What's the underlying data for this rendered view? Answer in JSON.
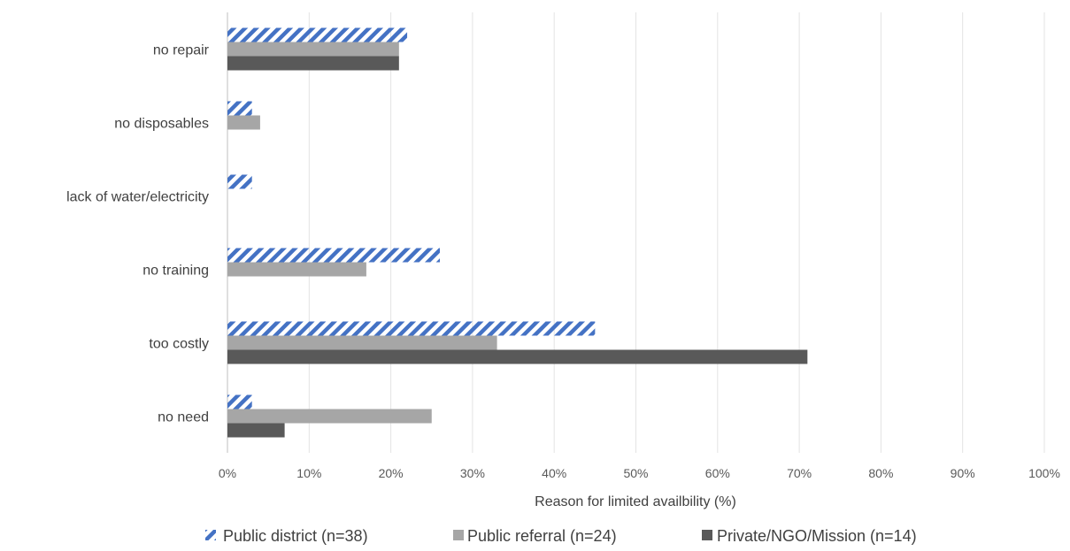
{
  "chart_data": {
    "type": "bar",
    "orientation": "horizontal",
    "categories": [
      "no repair",
      "no disposables",
      "lack of water/electricity",
      "no training",
      "too costly",
      "no need"
    ],
    "series": [
      {
        "name": "Public district (n=38)",
        "values": [
          22,
          3,
          3,
          26,
          45,
          3
        ],
        "color": "#4472C4",
        "pattern": "diagonal-hatch"
      },
      {
        "name": "Public referral (n=24)",
        "values": [
          21,
          4,
          0,
          17,
          33,
          25
        ],
        "color": "#A6A6A6",
        "pattern": "solid"
      },
      {
        "name": "Private/NGO/Mission (n=14)",
        "values": [
          21,
          0,
          0,
          0,
          71,
          7
        ],
        "color": "#595959",
        "pattern": "solid"
      }
    ],
    "xlabel": "Reason for limited availbility (%)",
    "ylabel": "",
    "xlim": [
      0,
      100
    ],
    "xticks": [
      "0%",
      "10%",
      "20%",
      "30%",
      "40%",
      "50%",
      "60%",
      "70%",
      "80%",
      "90%",
      "100%"
    ],
    "grid": "vertical",
    "legend_position": "bottom"
  }
}
